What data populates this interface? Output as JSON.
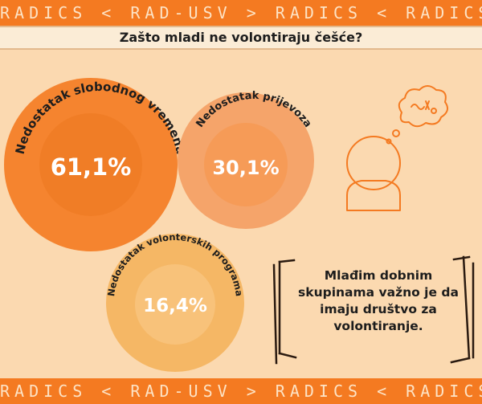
{
  "banner": {
    "pattern_text": "RADICS < RAD-USV > RADICS < RADICS"
  },
  "title": "Zašto mladi ne volontiraju češće?",
  "bubbles": [
    {
      "label": "Nedostatak slobodnog vremena",
      "value": "61,1%",
      "color": "#f47a21"
    },
    {
      "label": "Nedostatak prijevoza",
      "value": "30,1%",
      "color": "#f5a46a"
    },
    {
      "label": "Nedostatak volonterskih programa",
      "value": "16,4%",
      "color": "#f5b765"
    }
  ],
  "note": "Mlađim dobnim skupinama važno je da imaju društvo za volontiranje.",
  "icons": {
    "person": "thinking-person-icon",
    "bubble": "thought-bubble-icon"
  },
  "colors": {
    "background": "#fbd9b0",
    "accent": "#f47a21"
  }
}
